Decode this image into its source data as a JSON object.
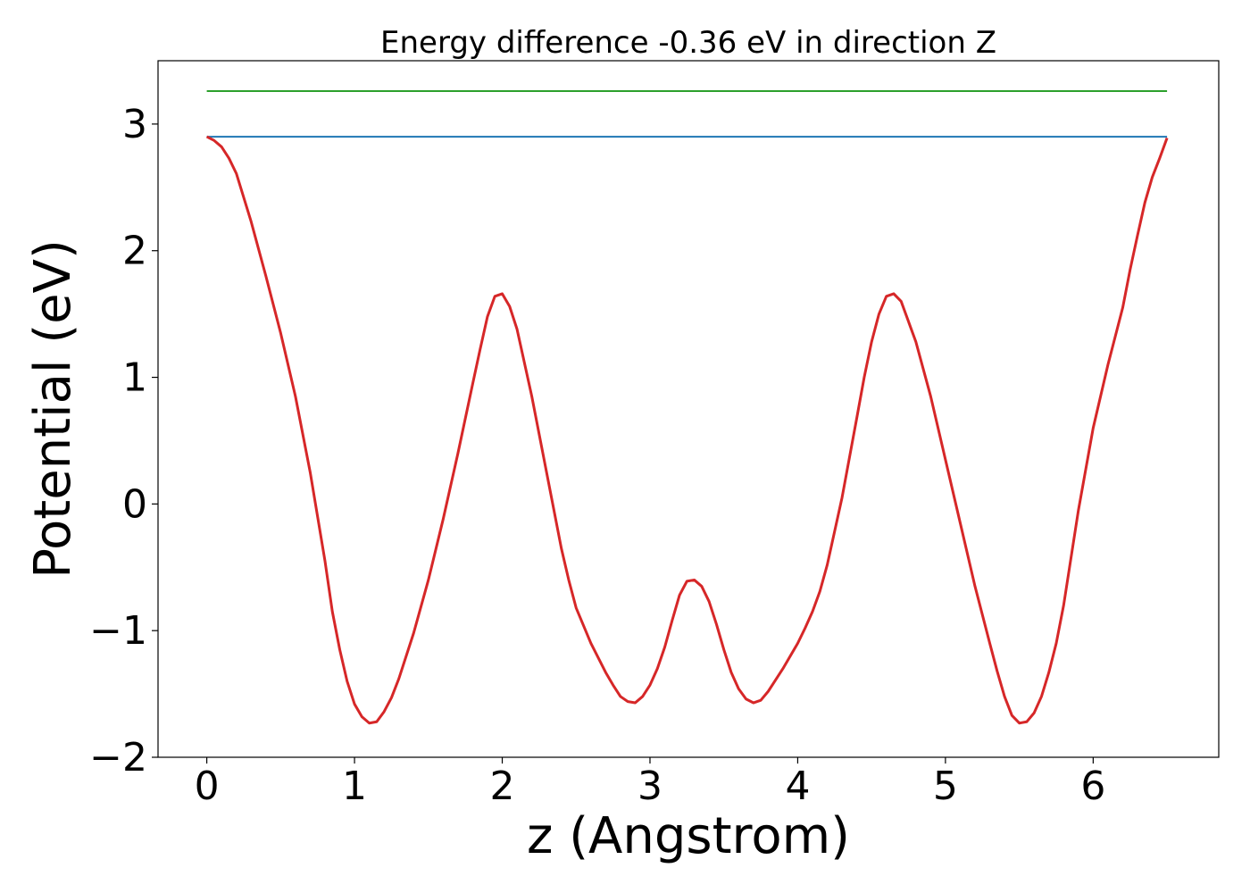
{
  "chart_data": {
    "type": "line",
    "title": "Energy difference -0.36 eV in direction Z",
    "xlabel": "z (Angstrom)",
    "ylabel": "Potential (eV)",
    "xlim": [
      -0.33,
      6.85
    ],
    "ylim": [
      -2.0,
      3.5
    ],
    "xticks": [
      0,
      1,
      2,
      3,
      4,
      5,
      6
    ],
    "xtick_labels": [
      "0",
      "1",
      "2",
      "3",
      "4",
      "5",
      "6"
    ],
    "yticks": [
      -2,
      -1,
      0,
      1,
      2,
      3
    ],
    "ytick_labels": [
      "−2",
      "−1",
      "0",
      "1",
      "2",
      "3"
    ],
    "grid": false,
    "legend": "none",
    "series": [
      {
        "color": "#2ca02c",
        "x": [
          0,
          6.5
        ],
        "y": [
          3.26,
          3.26
        ]
      },
      {
        "color": "#1f77b4",
        "x": [
          0,
          6.5
        ],
        "y": [
          2.9,
          2.9
        ]
      },
      {
        "color": "#d62728",
        "x": [
          0.0,
          0.05,
          0.1,
          0.15,
          0.2,
          0.3,
          0.4,
          0.5,
          0.6,
          0.7,
          0.8,
          0.85,
          0.9,
          0.95,
          1.0,
          1.05,
          1.1,
          1.15,
          1.2,
          1.25,
          1.3,
          1.4,
          1.5,
          1.6,
          1.7,
          1.8,
          1.85,
          1.9,
          1.95,
          2.0,
          2.05,
          2.1,
          2.2,
          2.3,
          2.35,
          2.4,
          2.45,
          2.5,
          2.6,
          2.7,
          2.75,
          2.8,
          2.85,
          2.9,
          2.95,
          3.0,
          3.05,
          3.1,
          3.15,
          3.2,
          3.25,
          3.3,
          3.35,
          3.4,
          3.45,
          3.5,
          3.55,
          3.6,
          3.65,
          3.7,
          3.75,
          3.8,
          3.9,
          4.0,
          4.05,
          4.1,
          4.15,
          4.2,
          4.3,
          4.4,
          4.45,
          4.5,
          4.55,
          4.6,
          4.65,
          4.7,
          4.8,
          4.9,
          5.0,
          5.1,
          5.2,
          5.3,
          5.35,
          5.4,
          5.45,
          5.5,
          5.55,
          5.6,
          5.65,
          5.7,
          5.75,
          5.8,
          5.9,
          6.0,
          6.1,
          6.2,
          6.25,
          6.3,
          6.35,
          6.4,
          6.45,
          6.5
        ],
        "y": [
          2.9,
          2.87,
          2.82,
          2.73,
          2.61,
          2.23,
          1.8,
          1.35,
          0.85,
          0.25,
          -0.45,
          -0.85,
          -1.15,
          -1.4,
          -1.58,
          -1.68,
          -1.73,
          -1.72,
          -1.64,
          -1.53,
          -1.38,
          -1.02,
          -0.6,
          -0.12,
          0.4,
          0.95,
          1.22,
          1.48,
          1.64,
          1.66,
          1.56,
          1.38,
          0.85,
          0.25,
          -0.05,
          -0.35,
          -0.6,
          -0.82,
          -1.1,
          -1.33,
          -1.43,
          -1.52,
          -1.56,
          -1.57,
          -1.52,
          -1.43,
          -1.3,
          -1.13,
          -0.92,
          -0.72,
          -0.61,
          -0.6,
          -0.65,
          -0.77,
          -0.95,
          -1.15,
          -1.33,
          -1.46,
          -1.54,
          -1.57,
          -1.55,
          -1.48,
          -1.3,
          -1.1,
          -0.98,
          -0.85,
          -0.69,
          -0.48,
          0.05,
          0.68,
          1.0,
          1.28,
          1.5,
          1.64,
          1.66,
          1.6,
          1.28,
          0.85,
          0.35,
          -0.15,
          -0.65,
          -1.1,
          -1.32,
          -1.52,
          -1.67,
          -1.73,
          -1.72,
          -1.65,
          -1.52,
          -1.33,
          -1.1,
          -0.8,
          -0.05,
          0.6,
          1.1,
          1.55,
          1.85,
          2.12,
          2.38,
          2.58,
          2.73,
          2.89
        ]
      }
    ]
  }
}
